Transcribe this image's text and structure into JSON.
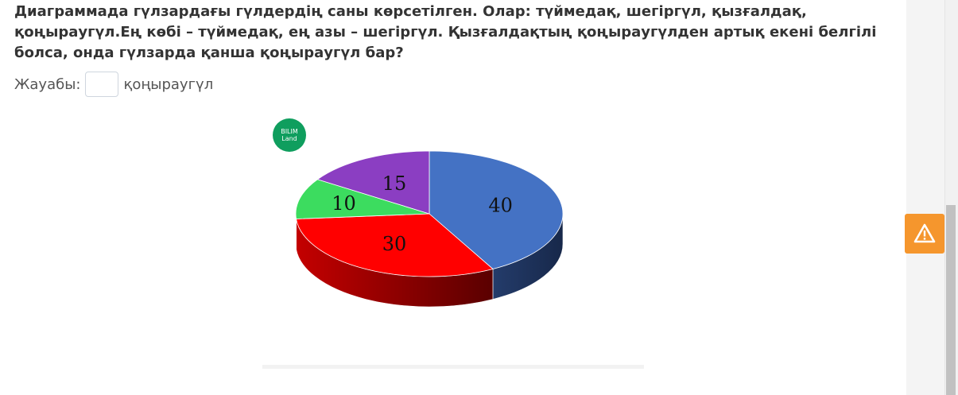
{
  "question": {
    "text": "Диаграммада гүлзардағы гүлдердің саны көрсетілген. Олар: түймедақ, шегіргүл, қызғалдақ, қоңыраугүл.Ең көбі – түймедақ, ең азы – шегіргүл. Қызғалдақтың қоңыраугүлден артық екені белгілі болса, онда гүлзарда қанша қоңыраугүл бар?"
  },
  "answer": {
    "label": "Жауабы:",
    "value": "",
    "unit": "қоңыраугүл"
  },
  "logo": {
    "line1": "BILIM",
    "line2": "Land",
    "color": "#0f9e5e"
  },
  "chart_data": {
    "type": "pie",
    "title": "",
    "slices": [
      {
        "value": 40,
        "label": "40",
        "color": "#4472c4"
      },
      {
        "value": 30,
        "label": "30",
        "color": "#ff0000"
      },
      {
        "value": 10,
        "label": "10",
        "color": "#3cdc5f"
      },
      {
        "value": 15,
        "label": "15",
        "color": "#8b3ec2"
      }
    ],
    "style": "3d-tilted"
  },
  "warning": {
    "icon": "warning-triangle-icon",
    "color": "#f5962d"
  }
}
